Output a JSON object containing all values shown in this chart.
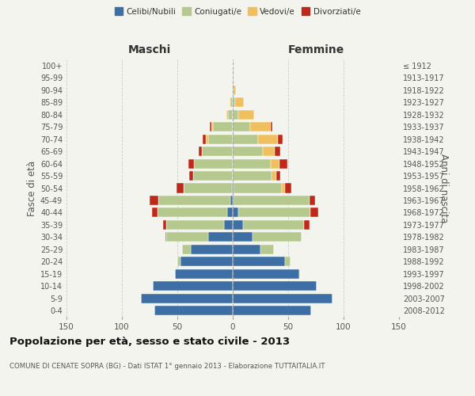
{
  "age_groups": [
    "0-4",
    "5-9",
    "10-14",
    "15-19",
    "20-24",
    "25-29",
    "30-34",
    "35-39",
    "40-44",
    "45-49",
    "50-54",
    "55-59",
    "60-64",
    "65-69",
    "70-74",
    "75-79",
    "80-84",
    "85-89",
    "90-94",
    "95-99",
    "100+"
  ],
  "birth_years": [
    "2008-2012",
    "2003-2007",
    "1998-2002",
    "1993-1997",
    "1988-1992",
    "1983-1987",
    "1978-1982",
    "1973-1977",
    "1968-1972",
    "1963-1967",
    "1958-1962",
    "1953-1957",
    "1948-1952",
    "1943-1947",
    "1938-1942",
    "1933-1937",
    "1928-1932",
    "1923-1927",
    "1918-1922",
    "1913-1917",
    "≤ 1912"
  ],
  "male": {
    "celibi": [
      71,
      83,
      72,
      52,
      47,
      38,
      22,
      8,
      5,
      2,
      1,
      0,
      0,
      0,
      0,
      0,
      0,
      0,
      0,
      0,
      0
    ],
    "coniugati": [
      0,
      0,
      0,
      0,
      3,
      8,
      38,
      52,
      63,
      65,
      43,
      36,
      35,
      28,
      22,
      18,
      4,
      2,
      0,
      0,
      0
    ],
    "vedovi": [
      0,
      0,
      0,
      0,
      0,
      0,
      0,
      0,
      0,
      0,
      0,
      0,
      0,
      0,
      2,
      1,
      2,
      1,
      1,
      0,
      0
    ],
    "divorziati": [
      0,
      0,
      0,
      0,
      0,
      0,
      1,
      3,
      5,
      8,
      7,
      3,
      5,
      3,
      3,
      2,
      0,
      0,
      0,
      0,
      0
    ]
  },
  "female": {
    "nubili": [
      71,
      90,
      76,
      60,
      47,
      25,
      18,
      9,
      5,
      1,
      1,
      0,
      0,
      0,
      0,
      0,
      0,
      0,
      0,
      0,
      0
    ],
    "coniugate": [
      0,
      0,
      0,
      1,
      5,
      12,
      44,
      55,
      65,
      68,
      43,
      35,
      34,
      27,
      23,
      16,
      5,
      2,
      1,
      0,
      0
    ],
    "vedove": [
      0,
      0,
      0,
      0,
      0,
      0,
      0,
      0,
      0,
      0,
      3,
      4,
      8,
      11,
      18,
      18,
      14,
      8,
      2,
      1,
      0
    ],
    "divorziate": [
      0,
      0,
      0,
      0,
      0,
      0,
      0,
      5,
      7,
      5,
      6,
      4,
      7,
      5,
      4,
      2,
      0,
      0,
      0,
      0,
      0
    ]
  },
  "colors": {
    "celibi": "#3d6fa5",
    "coniugati": "#b5c98e",
    "vedovi": "#f0c060",
    "divorziati": "#c0291a"
  },
  "xlim": 150,
  "title": "Popolazione per età, sesso e stato civile - 2013",
  "subtitle": "COMUNE DI CENATE SOPRA (BG) - Dati ISTAT 1° gennaio 2013 - Elaborazione TUTTAITALIA.IT",
  "ylabel_left": "Fasce di età",
  "ylabel_right": "Anni di nascita",
  "xlabel_left": "Maschi",
  "xlabel_right": "Femmine",
  "background_color": "#f4f4ee"
}
